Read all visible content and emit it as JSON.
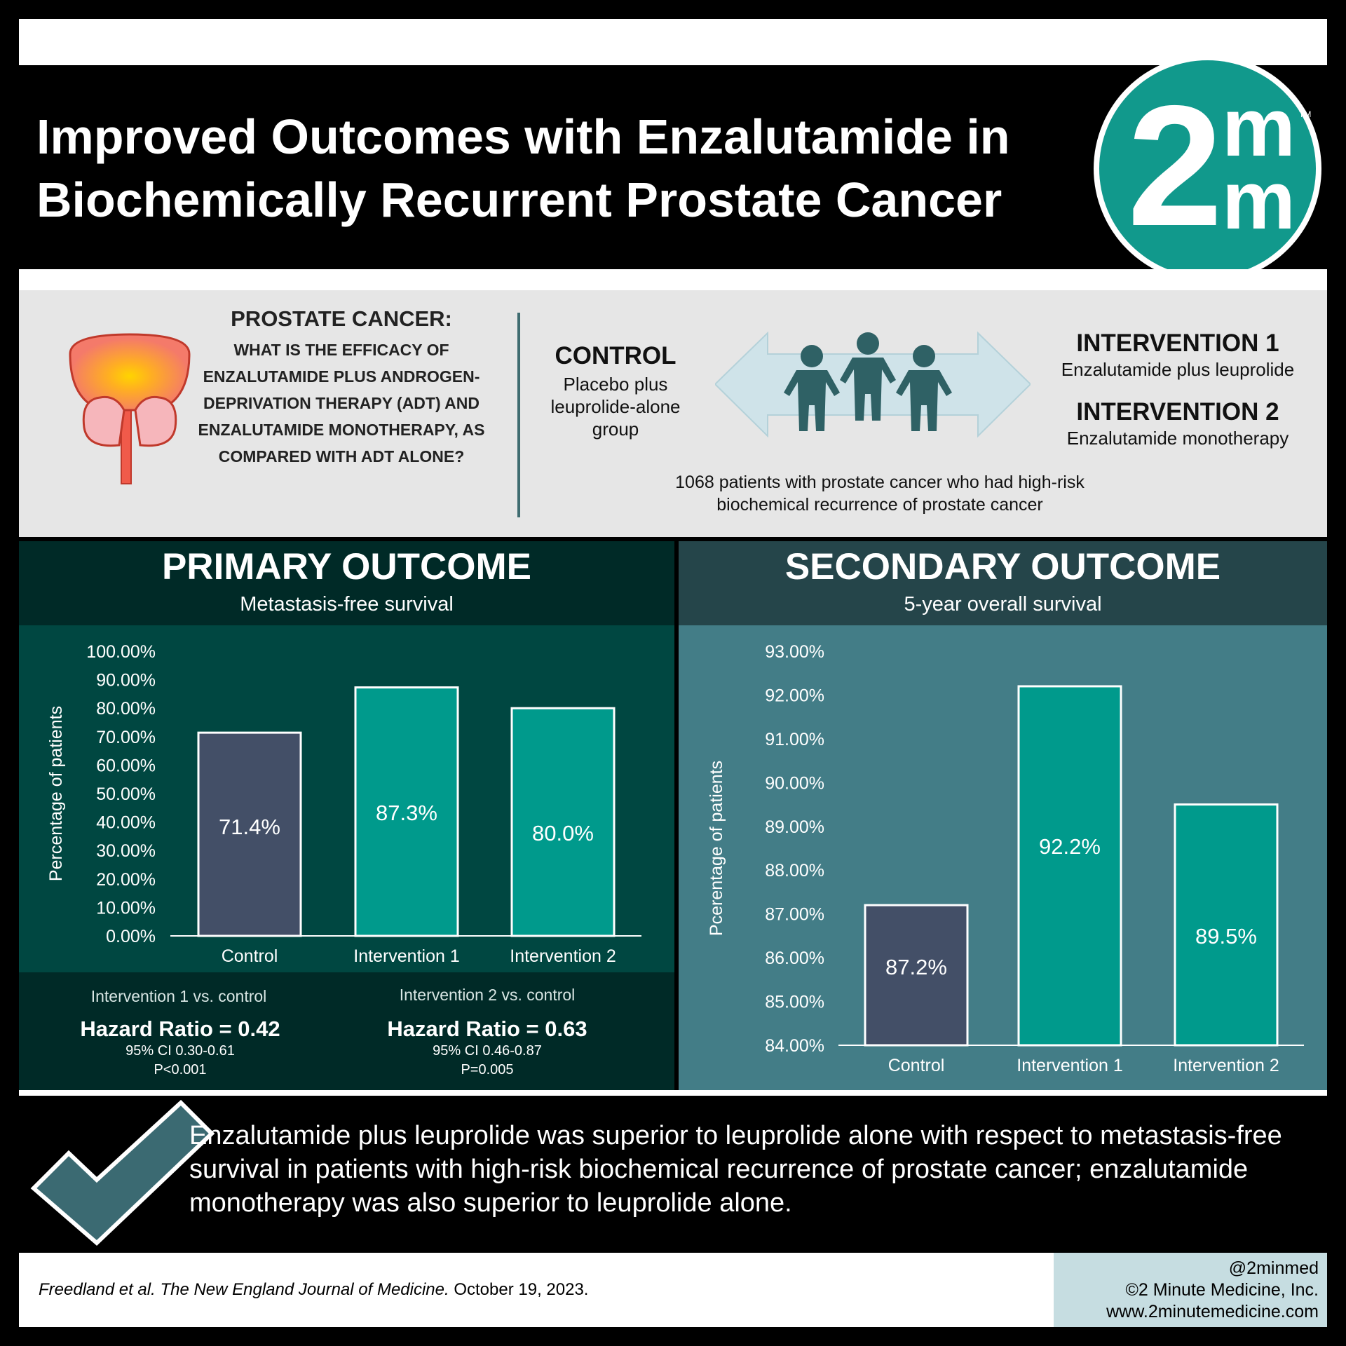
{
  "header": {
    "title_line1": "Improved Outcomes with Enzalutamide in",
    "title_line2": "Biochemically Recurrent Prostate Cancer",
    "logo_number": "2",
    "logo_letter1": "m",
    "logo_letter2": "m",
    "logo_tm": "TM"
  },
  "question": {
    "title": "PROSTATE CANCER:",
    "text": "WHAT IS THE EFFICACY OF ENZALUTAMIDE PLUS ANDROGEN-DEPRIVATION THERAPY (ADT) AND ENZALUTAMIDE MONOTHERAPY, AS COMPARED WITH ADT ALONE?"
  },
  "groups": {
    "control_title": "CONTROL",
    "control_desc": "Placebo plus leuprolide-alone group",
    "int1_title": "INTERVENTION 1",
    "int1_desc": "Enzalutamide plus leuprolide",
    "int2_title": "INTERVENTION 2",
    "int2_desc": "Enzalutamide monotherapy",
    "population": "1068 patients with prostate cancer who had high-risk biochemical recurrence of prostate cancer"
  },
  "primary": {
    "title": "PRIMARY OUTCOME",
    "subtitle": "Metastasis-free survival",
    "stat1_label": "Intervention 1 vs. control",
    "stat1_hr": "Hazard Ratio = 0.42",
    "stat1_ci": "95% CI 0.30-0.61",
    "stat1_p": "P<0.001",
    "stat2_label": "Intervention 2 vs. control",
    "stat2_hr": "Hazard Ratio = 0.63",
    "stat2_ci": "95% CI 0.46-0.87",
    "stat2_p": "P=0.005"
  },
  "secondary": {
    "title": "SECONDARY OUTCOME",
    "subtitle": "5-year overall survival"
  },
  "chart_data": [
    {
      "type": "bar",
      "title": "Metastasis-free survival",
      "categories": [
        "Control",
        "Intervention 1",
        "Intervention 2"
      ],
      "values": [
        71.4,
        87.3,
        80.0
      ],
      "value_labels": [
        "71.4%",
        "87.3%",
        "80.0%"
      ],
      "ylabel": "Percentage of patients",
      "ylim": [
        0,
        100
      ],
      "yticks": [
        "0.00%",
        "10.00%",
        "20.00%",
        "30.00%",
        "40.00%",
        "50.00%",
        "60.00%",
        "70.00%",
        "80.00%",
        "90.00%",
        "100.00%"
      ],
      "colors": [
        "#434f67",
        "#009a8c",
        "#009a8c"
      ],
      "grid": false
    },
    {
      "type": "bar",
      "title": "5-year overall survival",
      "categories": [
        "Control",
        "Intervention 1",
        "Intervention 2"
      ],
      "values": [
        87.2,
        92.2,
        89.5
      ],
      "value_labels": [
        "87.2%",
        "92.2%",
        "89.5%"
      ],
      "ylabel": "Pcerentage of patients",
      "ylim": [
        84,
        93
      ],
      "yticks": [
        "84.00%",
        "85.00%",
        "86.00%",
        "87.00%",
        "88.00%",
        "89.00%",
        "90.00%",
        "91.00%",
        "92.00%",
        "93.00%"
      ],
      "colors": [
        "#434f67",
        "#009a8c",
        "#009a8c"
      ],
      "grid": false
    }
  ],
  "conclusion": "Enzalutamide plus leuprolide was superior to leuprolide alone with respect to metastasis-free survival in patients with high-risk biochemical recurrence of prostate cancer; enzalutamide monotherapy was also superior to leuprolide alone.",
  "footer": {
    "citation_authors": "Freedland et al. ",
    "citation_journal": "The New England Journal of Medicine.",
    "citation_date": " October 19, 2023.",
    "handle": "@2minmed",
    "copyright": "©2 Minute Medicine, Inc.",
    "website": "www.2minutemedicine.com"
  },
  "colors": {
    "teal_accent": "#11998c",
    "control_bar": "#434f67",
    "intervention_bar": "#009a8c"
  }
}
